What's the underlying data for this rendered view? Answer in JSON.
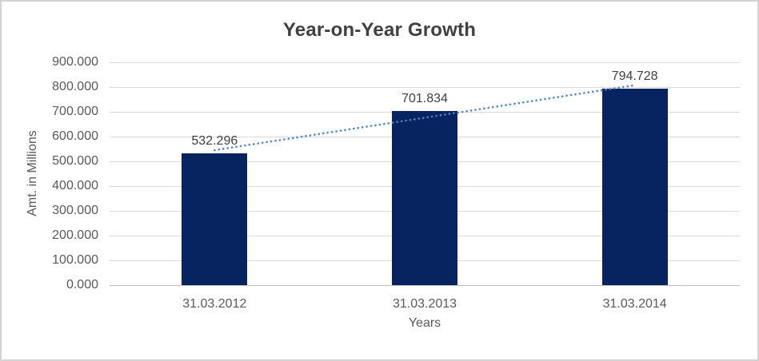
{
  "chart_data": {
    "type": "bar",
    "title": "Year-on-Year Growth",
    "xlabel": "Years",
    "ylabel": "Amt. in Millions",
    "categories": [
      "31.03.2012",
      "31.03.2013",
      "31.03.2014"
    ],
    "values": [
      532.296,
      701.834,
      794.728
    ],
    "value_labels": [
      "532.296",
      "701.834",
      "794.728"
    ],
    "ylim": [
      0,
      900
    ],
    "ytick_step": 100,
    "ytick_labels": [
      "0.000",
      "100.000",
      "200.000",
      "300.000",
      "400.000",
      "500.000",
      "600.000",
      "700.000",
      "800.000",
      "900.000"
    ],
    "grid": true,
    "legend": "none",
    "trendline": {
      "type": "linear",
      "style": "dotted"
    },
    "colors": {
      "bar": "#072461",
      "trendline": "#4A86C8",
      "gridline": "#D9D9D9",
      "baseline": "#BFBFBF",
      "axis_text": "#595959",
      "title_text": "#404040",
      "data_label_text": "#404040",
      "frame_border": "#D3D3D3",
      "background": "#FFFFFF"
    }
  }
}
